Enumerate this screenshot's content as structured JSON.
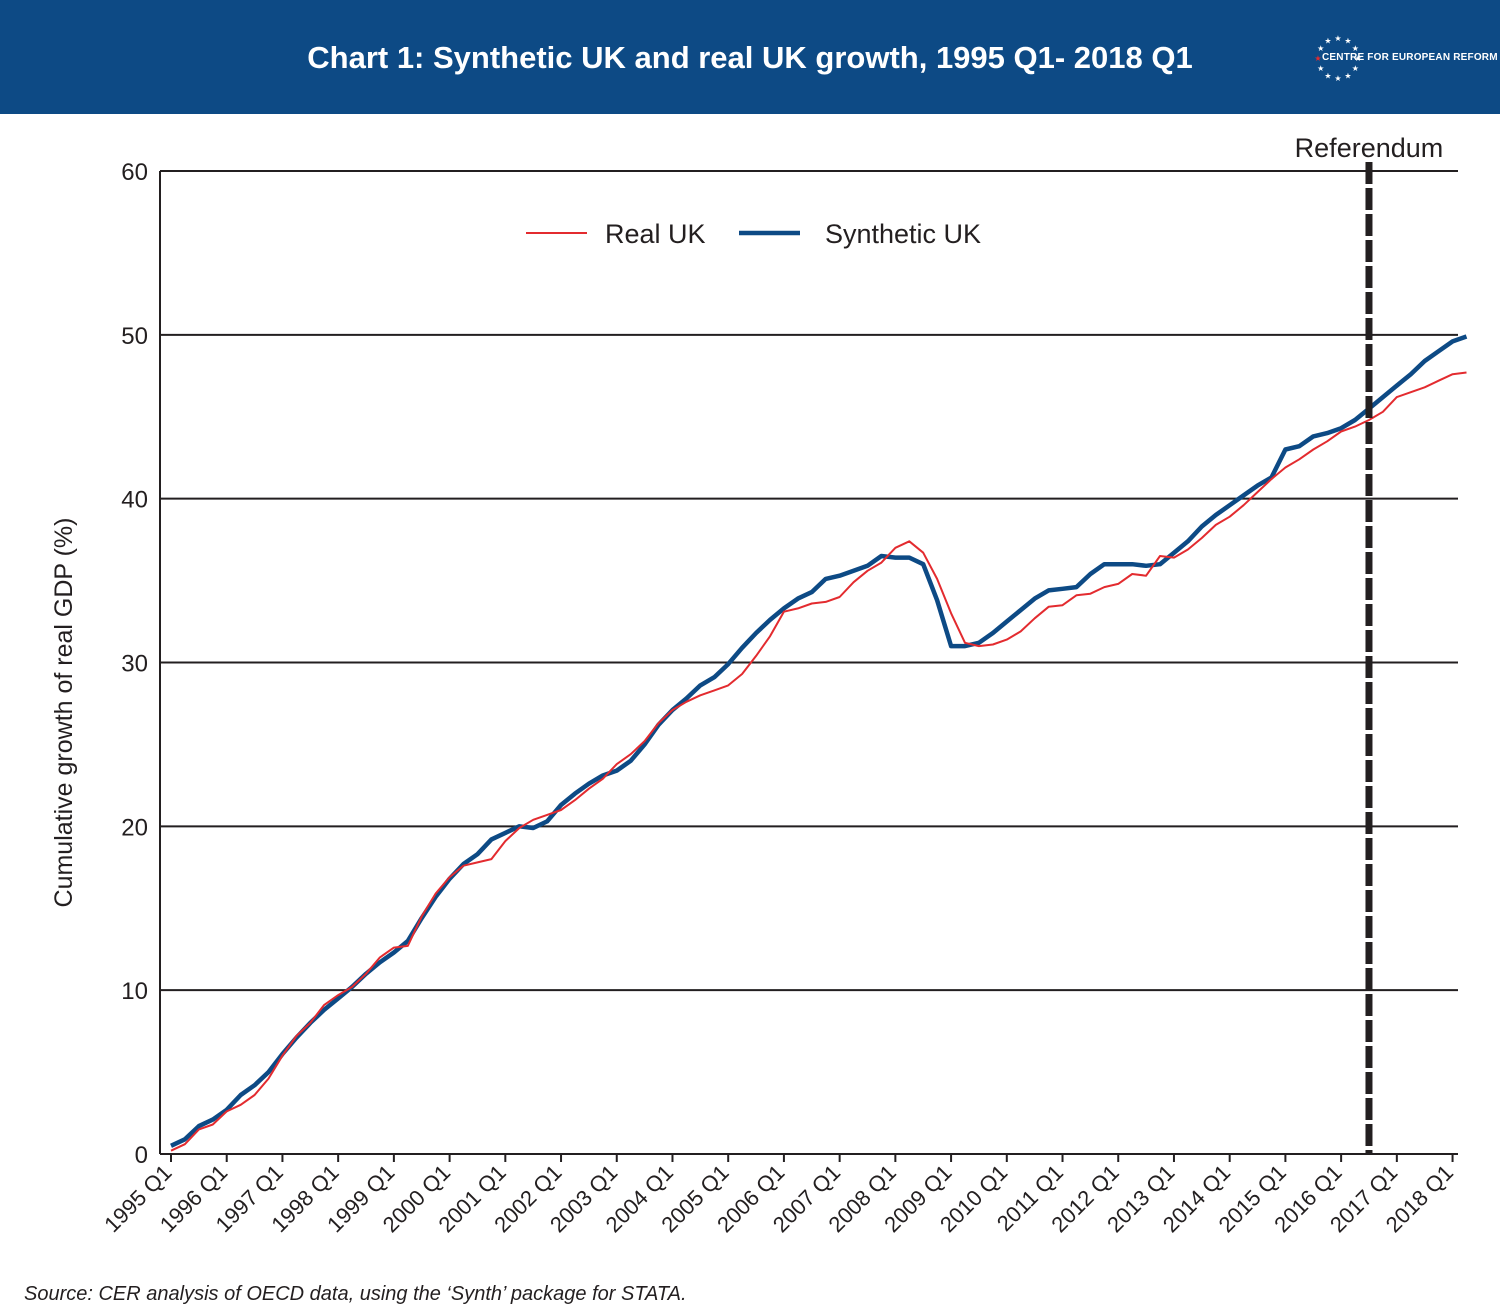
{
  "header": {
    "title": "Chart 1: Synthetic UK and real UK growth, 1995 Q1- 2018 Q1",
    "logo_text": "CENTRE FOR EUROPEAN REFORM",
    "background": "#0d4a85"
  },
  "source": "Source: CER analysis of OECD data, using the ‘Synth’ package for STATA.",
  "chart_data": {
    "type": "line",
    "title": "Chart 1: Synthetic UK and real UK growth, 1995 Q1- 2018 Q1",
    "xlabel": "",
    "ylabel": "Cumulative growth of real GDP (%)",
    "ylim": [
      0,
      60
    ],
    "yticks": [
      0,
      10,
      20,
      30,
      40,
      50,
      60
    ],
    "grid": "horizontal",
    "legend_position": "top-center",
    "x_tick_labels": [
      "1995 Q1",
      "1996 Q1",
      "1997 Q1",
      "1998 Q1",
      "1999 Q1",
      "2000 Q1",
      "2001 Q1",
      "2002 Q1",
      "2003 Q1",
      "2004 Q1",
      "2005 Q1",
      "2006 Q1",
      "2007 Q1",
      "2008 Q1",
      "2009 Q1",
      "2010 Q1",
      "2011 Q1",
      "2012 Q1",
      "2013 Q1",
      "2014 Q1",
      "2015 Q1",
      "2016 Q1",
      "2017 Q1",
      "2018 Q1"
    ],
    "annotation": {
      "label": "Referendum",
      "at_quarter": "2016 Q3"
    },
    "series": [
      {
        "name": "Real UK",
        "color": "#e32b2f",
        "values": [
          0.2,
          0.6,
          1.5,
          1.8,
          2.6,
          3.0,
          3.6,
          4.6,
          6.0,
          7.2,
          8.0,
          9.1,
          9.7,
          10.2,
          11.0,
          12.0,
          12.6,
          12.7,
          14.5,
          15.9,
          16.9,
          17.6,
          17.8,
          18.0,
          19.1,
          19.9,
          20.4,
          20.7,
          21.0,
          21.6,
          22.3,
          22.9,
          23.8,
          24.4,
          25.2,
          26.3,
          27.1,
          27.6,
          28.0,
          28.3,
          28.6,
          29.3,
          30.4,
          31.6,
          33.1,
          33.3,
          33.6,
          33.7,
          34.0,
          34.9,
          35.6,
          36.1,
          37.0,
          37.4,
          36.7,
          35.1,
          33.0,
          31.2,
          31.0,
          31.1,
          31.4,
          31.9,
          32.7,
          33.4,
          33.5,
          34.1,
          34.2,
          34.6,
          34.8,
          35.4,
          35.3,
          36.5,
          36.4,
          36.9,
          37.6,
          38.4,
          38.9,
          39.6,
          40.4,
          41.2,
          41.9,
          42.4,
          43.0,
          43.5,
          44.1,
          44.4,
          44.8,
          45.3,
          46.2,
          46.5,
          46.8,
          47.2,
          47.6,
          47.7
        ]
      },
      {
        "name": "Synthetic UK",
        "color": "#0d4a85",
        "values": [
          0.5,
          0.9,
          1.7,
          2.1,
          2.7,
          3.6,
          4.2,
          5.0,
          6.1,
          7.1,
          8.0,
          8.8,
          9.5,
          10.2,
          11.0,
          11.7,
          12.3,
          13.0,
          14.4,
          15.7,
          16.8,
          17.7,
          18.3,
          19.2,
          19.6,
          20.0,
          19.9,
          20.3,
          21.3,
          22.0,
          22.6,
          23.1,
          23.4,
          24.0,
          25.0,
          26.2,
          27.1,
          27.8,
          28.6,
          29.1,
          29.9,
          30.9,
          31.8,
          32.6,
          33.3,
          33.9,
          34.3,
          35.1,
          35.3,
          35.6,
          35.9,
          36.5,
          36.4,
          36.4,
          36.0,
          33.8,
          31.0,
          31.0,
          31.2,
          31.8,
          32.5,
          33.2,
          33.9,
          34.4,
          34.5,
          34.6,
          35.4,
          36.0,
          36.0,
          36.0,
          35.9,
          36.0,
          36.7,
          37.4,
          38.3,
          39.0,
          39.6,
          40.2,
          40.8,
          41.3,
          43.0,
          43.2,
          43.8,
          44.0,
          44.3,
          44.8,
          45.5,
          46.2,
          46.9,
          47.6,
          48.4,
          49.0,
          49.6,
          49.9
        ]
      }
    ]
  }
}
